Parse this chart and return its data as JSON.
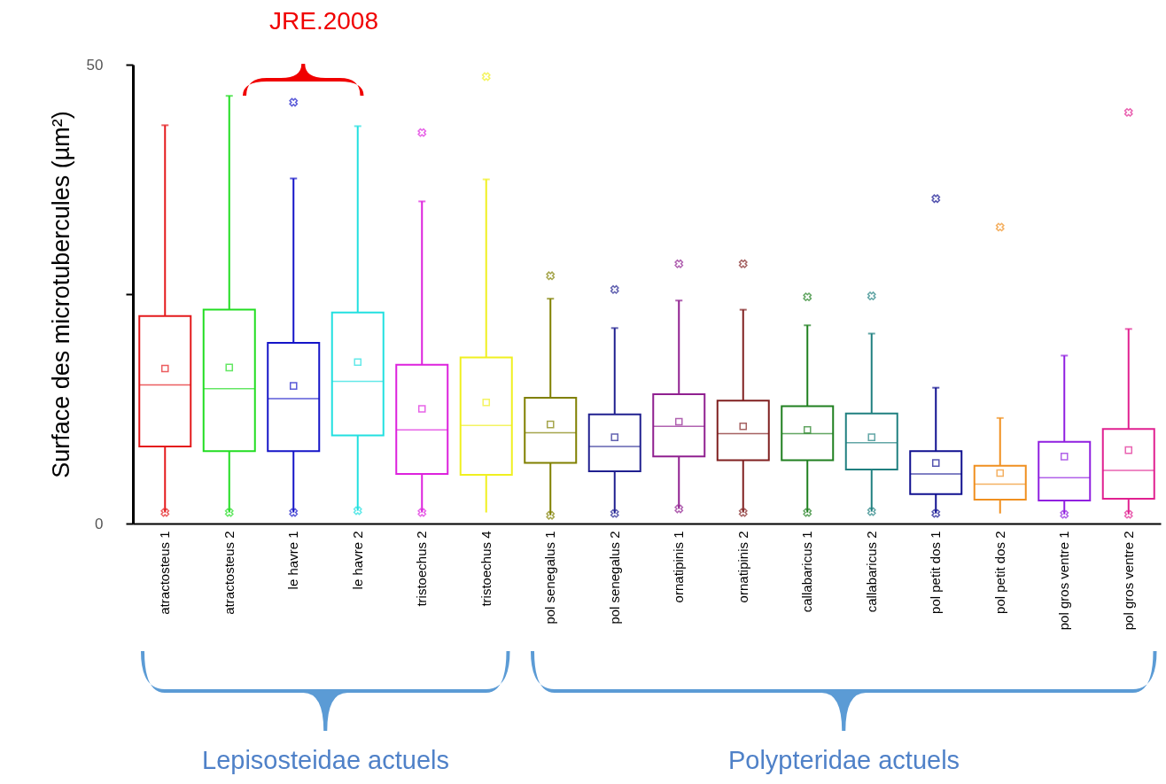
{
  "chart_data": {
    "type": "box",
    "ylabel": "Surface des microtubercules (µm²)",
    "categories": [
      "atractosteus 1",
      "atractosteus 2",
      "le havre 1",
      "le havre 2",
      "tristoechus 2",
      "tristoechus 4",
      "pol senegalus 1",
      "pol senegalus 2",
      "ornatipinis 1",
      "ornatipinis 2",
      "callabaricus 1",
      "callabaricus 2",
      "pol petit dos 1",
      "pol petit dos 2",
      "pol gros ventre 1",
      "pol gros ventre 2"
    ],
    "colors": [
      "#e41a1c",
      "#22dd22",
      "#1515c8",
      "#22e0e0",
      "#dd22dd",
      "#f0f020",
      "#808000",
      "#202090",
      "#902090",
      "#802020",
      "#208020",
      "#208080",
      "#101090",
      "#f09020",
      "#9020e0",
      "#e02090"
    ],
    "boxes": [
      {
        "low": 1.2,
        "q1": 8.4,
        "median": 15.1,
        "q3": 22.6,
        "high": 43.4,
        "mean": 16.9,
        "outliers": [
          1.2
        ]
      },
      {
        "low": 1.2,
        "q1": 7.9,
        "median": 14.7,
        "q3": 23.3,
        "high": 46.6,
        "mean": 17.0,
        "outliers": [
          1.2
        ]
      },
      {
        "low": 1.2,
        "q1": 7.9,
        "median": 13.6,
        "q3": 19.7,
        "high": 37.6,
        "mean": 15.0,
        "outliers": [
          1.2,
          45.9
        ]
      },
      {
        "low": 1.4,
        "q1": 9.6,
        "median": 15.5,
        "q3": 23.0,
        "high": 43.3,
        "mean": 17.6,
        "outliers": [
          1.4
        ]
      },
      {
        "low": 1.2,
        "q1": 5.4,
        "median": 10.2,
        "q3": 17.3,
        "high": 35.1,
        "mean": 12.5,
        "outliers": [
          1.2,
          42.6
        ]
      },
      {
        "low": 1.2,
        "q1": 5.3,
        "median": 10.7,
        "q3": 18.1,
        "high": 37.5,
        "mean": 13.2,
        "outliers": [
          48.7
        ]
      },
      {
        "low": 0.9,
        "q1": 6.6,
        "median": 9.9,
        "q3": 13.7,
        "high": 24.5,
        "mean": 10.8,
        "outliers": [
          0.9,
          27.0
        ]
      },
      {
        "low": 1.1,
        "q1": 5.7,
        "median": 8.4,
        "q3": 11.9,
        "high": 21.3,
        "mean": 9.4,
        "outliers": [
          1.1,
          25.5
        ]
      },
      {
        "low": 1.6,
        "q1": 7.3,
        "median": 10.6,
        "q3": 14.1,
        "high": 24.3,
        "mean": 11.1,
        "outliers": [
          1.6,
          28.3
        ]
      },
      {
        "low": 1.2,
        "q1": 6.9,
        "median": 9.8,
        "q3": 13.4,
        "high": 23.3,
        "mean": 10.6,
        "outliers": [
          1.2,
          28.3
        ]
      },
      {
        "low": 1.2,
        "q1": 6.9,
        "median": 9.8,
        "q3": 12.8,
        "high": 21.6,
        "mean": 10.2,
        "outliers": [
          1.2,
          24.7
        ]
      },
      {
        "low": 1.3,
        "q1": 5.9,
        "median": 8.8,
        "q3": 12.0,
        "high": 20.7,
        "mean": 9.4,
        "outliers": [
          1.3,
          24.8
        ]
      },
      {
        "low": 1.1,
        "q1": 3.2,
        "median": 5.4,
        "q3": 7.9,
        "high": 14.8,
        "mean": 6.6,
        "outliers": [
          1.1,
          35.4
        ]
      },
      {
        "low": 1.1,
        "q1": 2.6,
        "median": 4.3,
        "q3": 6.3,
        "high": 11.5,
        "mean": 5.5,
        "outliers": [
          32.3
        ]
      },
      {
        "low": 1.0,
        "q1": 2.5,
        "median": 5.0,
        "q3": 8.9,
        "high": 18.3,
        "mean": 7.3,
        "outliers": [
          1.0
        ]
      },
      {
        "low": 1.0,
        "q1": 2.7,
        "median": 5.8,
        "q3": 10.3,
        "high": 21.2,
        "mean": 8.0,
        "outliers": [
          1.0,
          44.8
        ]
      }
    ],
    "ylim": [
      0,
      50
    ],
    "yticks": [
      0,
      {
        "value": 25,
        "label": null
      },
      50
    ],
    "marker": "cross",
    "annotations": [
      "JRE.2008",
      "Lepisosteidae actuels",
      "Polypteridae actuels"
    ]
  }
}
